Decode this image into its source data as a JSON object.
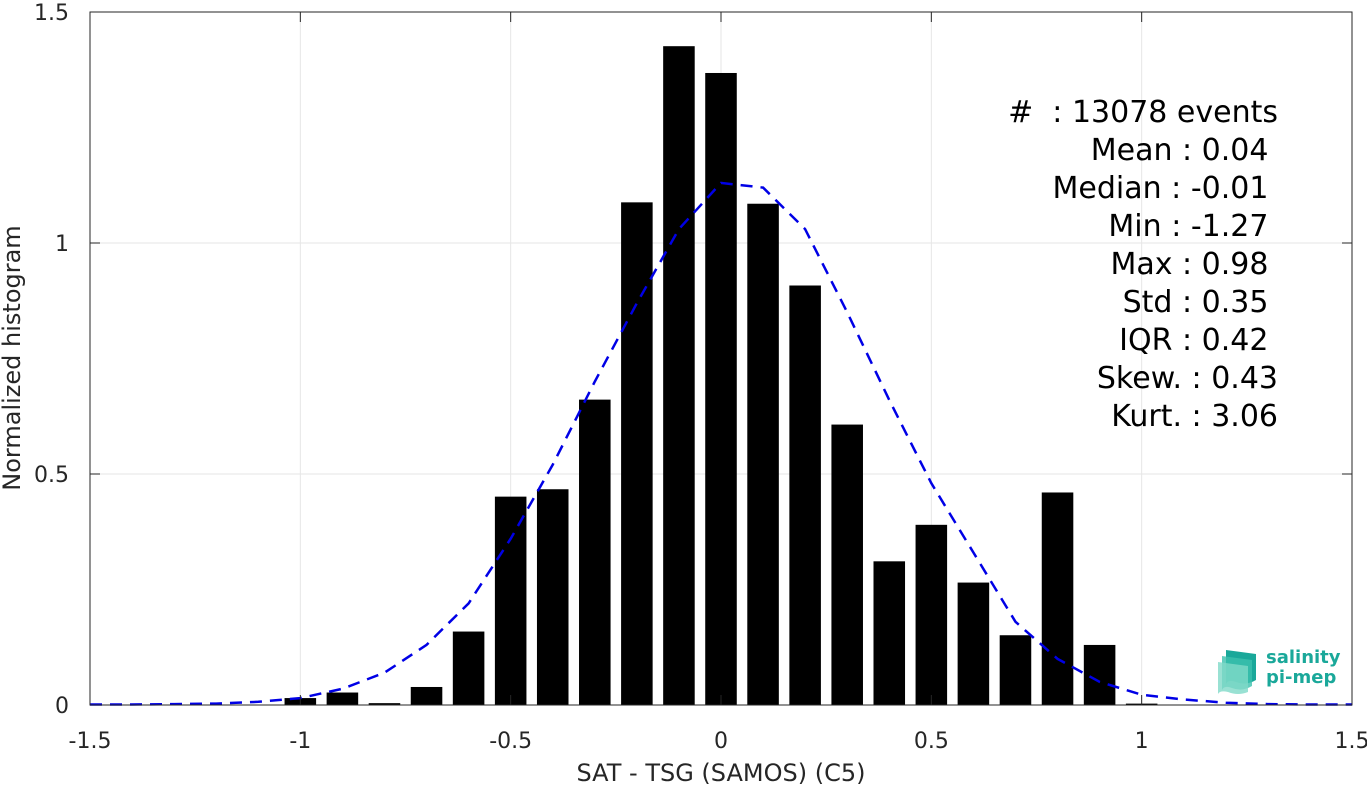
{
  "chart_data": {
    "type": "bar",
    "xlabel": "SAT - TSG (SAMOS) (C5)",
    "ylabel": "Normalized histogram",
    "xlim": [
      -1.5,
      1.5
    ],
    "ylim": [
      0,
      1.5
    ],
    "xticks": [
      -1.5,
      -1,
      -0.5,
      0,
      0.5,
      1,
      1.5
    ],
    "xtick_labels": [
      "-1.5",
      "-1",
      "-0.5",
      "0",
      "0.5",
      "1",
      "1.5"
    ],
    "yticks": [
      0,
      0.5,
      1,
      1.5
    ],
    "ytick_labels": [
      "0",
      "0.5",
      "1",
      "1.5"
    ],
    "grid": true,
    "bar_width": 0.075,
    "series": [
      {
        "type": "bar",
        "color": "#000000",
        "x": [
          -1.0,
          -0.9,
          -0.8,
          -0.7,
          -0.6,
          -0.5,
          -0.4,
          -0.3,
          -0.2,
          -0.1,
          0.0,
          0.1,
          0.2,
          0.3,
          0.4,
          0.5,
          0.6,
          0.7,
          0.8,
          0.9,
          1.0
        ],
        "values": [
          0.015,
          0.027,
          0.004,
          0.039,
          0.159,
          0.451,
          0.467,
          0.661,
          1.088,
          1.426,
          1.368,
          1.085,
          0.908,
          0.607,
          0.311,
          0.39,
          0.265,
          0.151,
          0.46,
          0.13,
          0.003
        ]
      },
      {
        "type": "line",
        "style": "dashed",
        "color": "#0000e6",
        "x": [
          -1.5,
          -1.4,
          -1.3,
          -1.2,
          -1.1,
          -1.0,
          -0.9,
          -0.8,
          -0.7,
          -0.6,
          -0.5,
          -0.4,
          -0.3,
          -0.2,
          -0.1,
          0.0,
          0.1,
          0.2,
          0.3,
          0.4,
          0.5,
          0.6,
          0.7,
          0.8,
          0.9,
          1.0,
          1.1,
          1.2,
          1.3,
          1.4,
          1.5
        ],
        "values": [
          0.001,
          0.001,
          0.002,
          0.003,
          0.007,
          0.015,
          0.035,
          0.07,
          0.13,
          0.22,
          0.36,
          0.52,
          0.7,
          0.87,
          1.03,
          1.13,
          1.12,
          1.03,
          0.85,
          0.66,
          0.48,
          0.33,
          0.18,
          0.1,
          0.05,
          0.022,
          0.012,
          0.005,
          0.002,
          0.001,
          0.001
        ]
      }
    ]
  },
  "stats": {
    "lines": [
      "#  : 13078 events",
      "Mean : 0.04 ",
      "Median : -0.01 ",
      "Min : -1.27 ",
      "Max : 0.98 ",
      "Std : 0.35 ",
      "IQR : 0.42 ",
      "Skew. : 0.43",
      "Kurt. : 3.06"
    ]
  },
  "logo": {
    "line1": "salinity",
    "line2": "pi-mep"
  }
}
